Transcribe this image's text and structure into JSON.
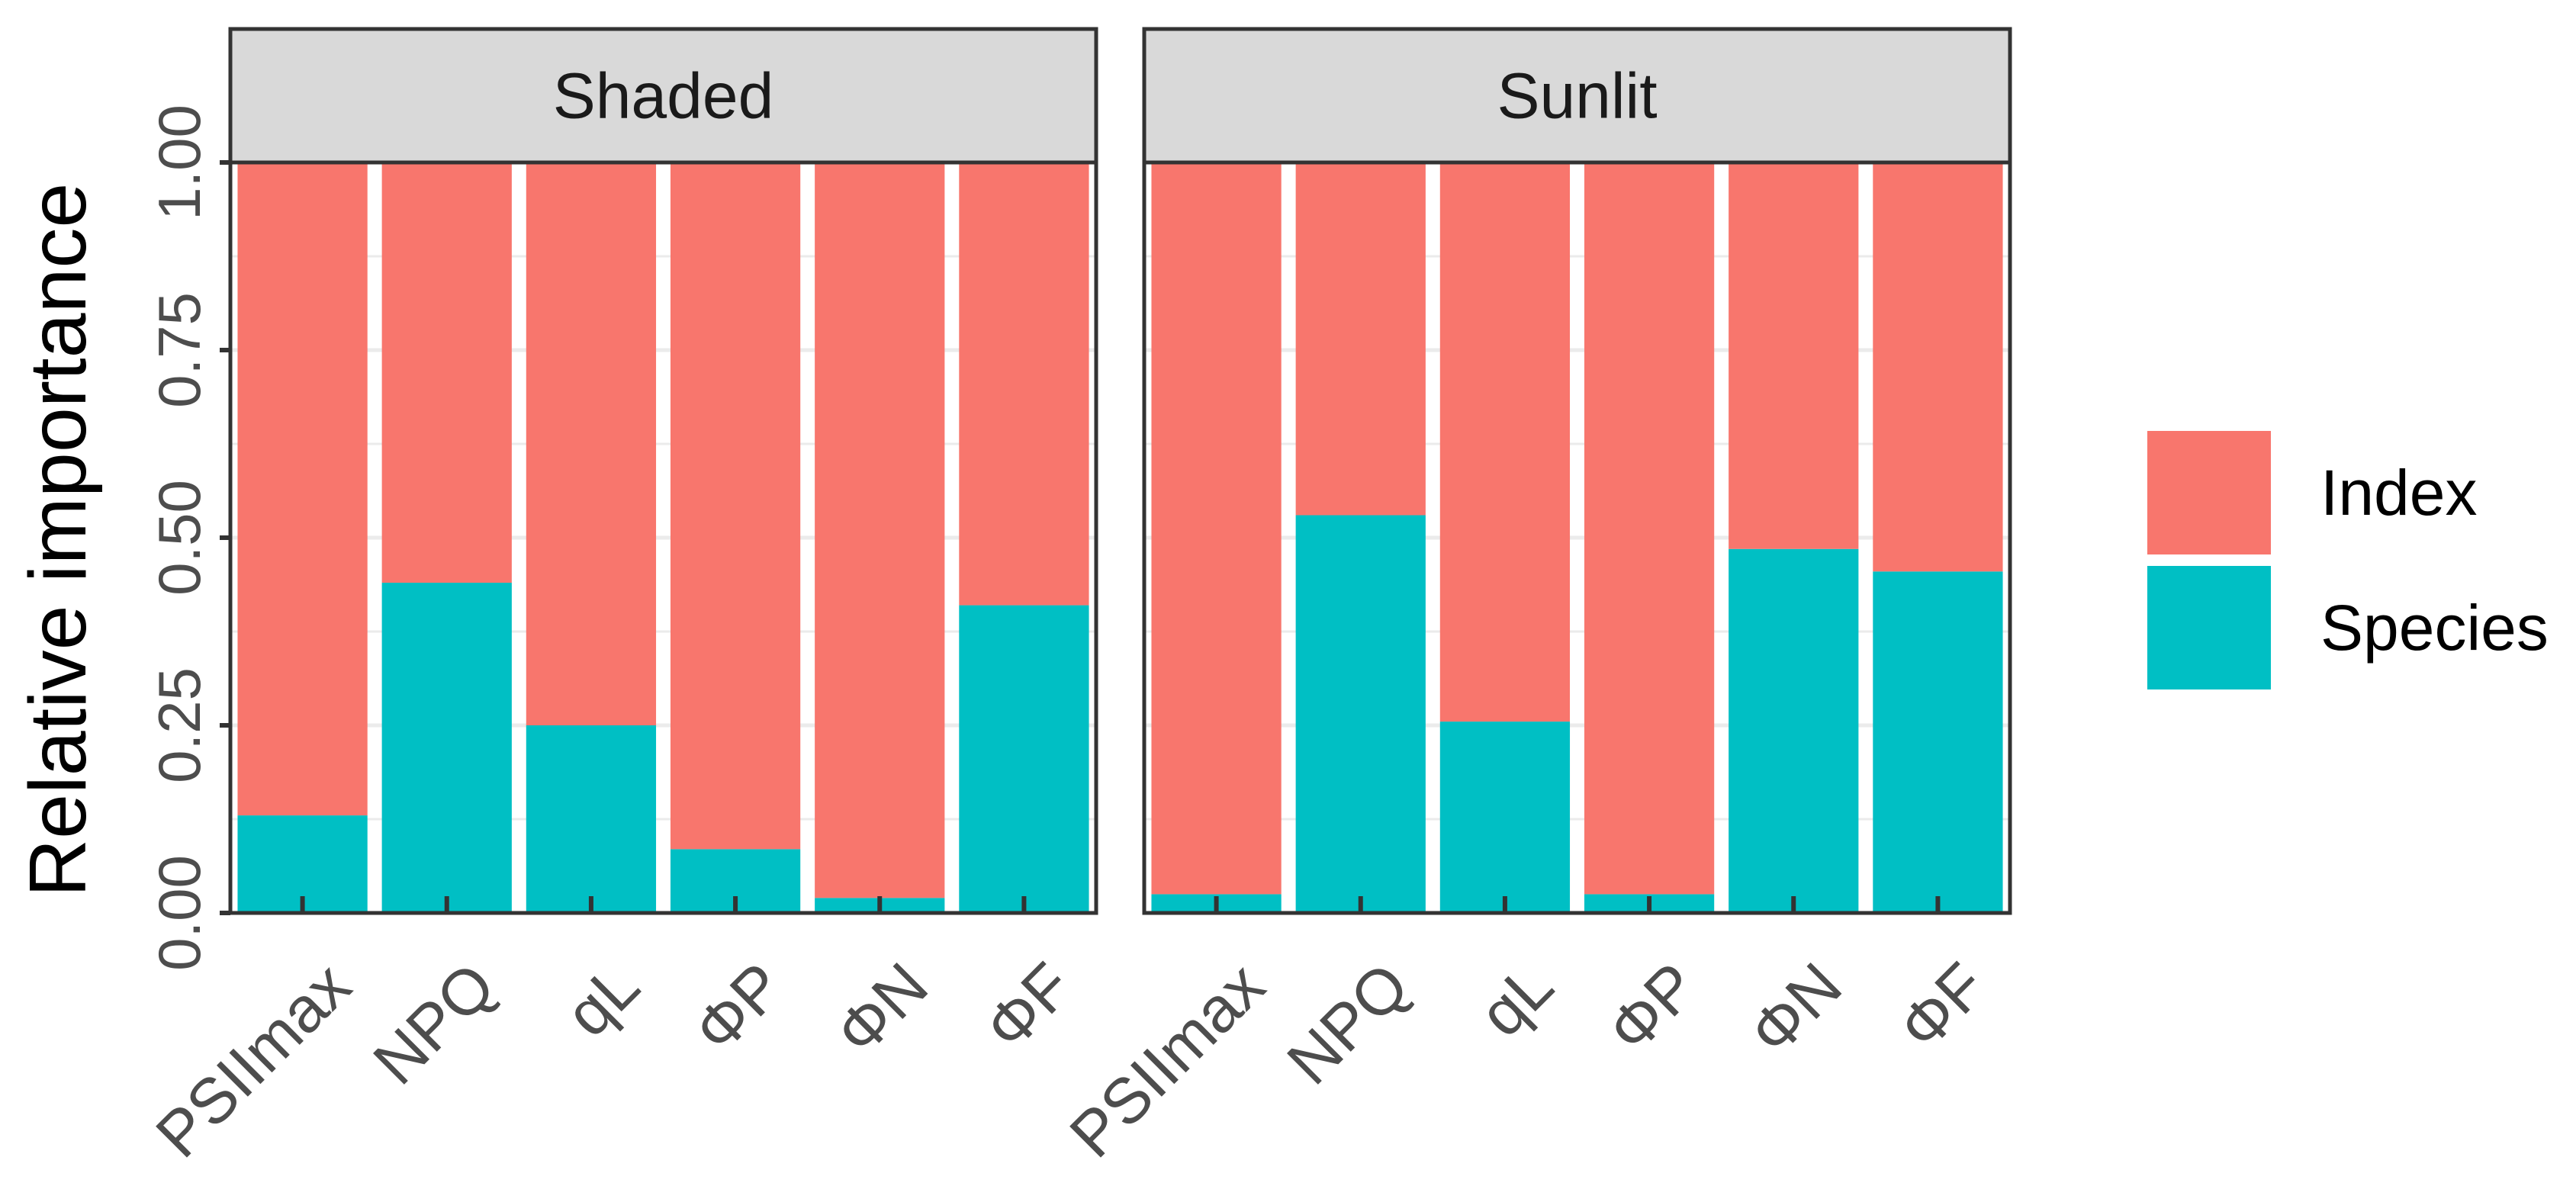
{
  "chart_data": {
    "type": "bar",
    "stacked": true,
    "ylabel": "Relative importance",
    "xlabel": "",
    "ylim": [
      0,
      1.0
    ],
    "y_ticks": [
      "0.00",
      "0.25",
      "0.50",
      "0.75",
      "1.00"
    ],
    "y_tick_values": [
      0,
      0.25,
      0.5,
      0.75,
      1.0
    ],
    "categories": [
      "PSIImax",
      "NPQ",
      "qL",
      "ΦP",
      "ΦN",
      "ΦF"
    ],
    "legend": {
      "position": "right",
      "entries": [
        {
          "name": "Index",
          "color": "#F8766D"
        },
        {
          "name": "Species",
          "color": "#00BFC4"
        }
      ]
    },
    "panels": [
      {
        "title": "Shaded",
        "series": [
          {
            "name": "Species",
            "values": [
              0.13,
              0.44,
              0.25,
              0.085,
              0.02,
              0.41
            ]
          },
          {
            "name": "Index",
            "values": [
              0.87,
              0.56,
              0.75,
              0.915,
              0.98,
              0.59
            ]
          }
        ]
      },
      {
        "title": "Sunlit",
        "series": [
          {
            "name": "Species",
            "values": [
              0.025,
              0.53,
              0.255,
              0.025,
              0.485,
              0.455
            ]
          },
          {
            "name": "Index",
            "values": [
              0.975,
              0.47,
              0.745,
              0.975,
              0.515,
              0.545
            ]
          }
        ]
      }
    ]
  }
}
